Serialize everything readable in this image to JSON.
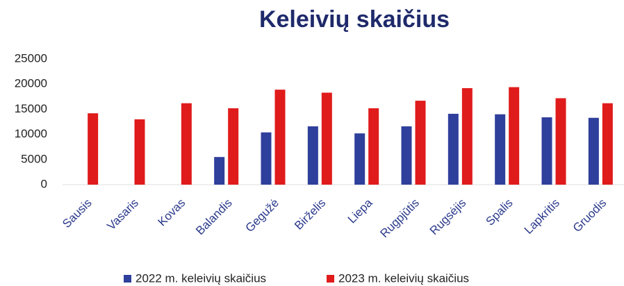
{
  "chart_data": {
    "type": "bar",
    "title": "Keleivių skaičius",
    "categories": [
      "Sausis",
      "Vasaris",
      "Kovas",
      "Balandis",
      "Gegužė",
      "Birželis",
      "Liepa",
      "Rugpjūtis",
      "Rugsėjis",
      "Spalis",
      "Lapkritis",
      "Gruodis"
    ],
    "series": [
      {
        "name": "2022 m. keleivių skaičius",
        "color": "#2f3f9c",
        "values": [
          null,
          null,
          null,
          5500,
          10400,
          11600,
          10200,
          11600,
          14100,
          14000,
          13400,
          13300
        ]
      },
      {
        "name": "2023 m. keleivių skaičius",
        "color": "#e01b1b",
        "values": [
          14200,
          13000,
          16200,
          15200,
          18900,
          18300,
          15200,
          16700,
          19200,
          19400,
          17200,
          16200
        ]
      }
    ],
    "ylim": [
      0,
      25000
    ],
    "yticks": [
      0,
      5000,
      10000,
      15000,
      20000,
      25000
    ],
    "grid": false,
    "legend": "bottom"
  }
}
